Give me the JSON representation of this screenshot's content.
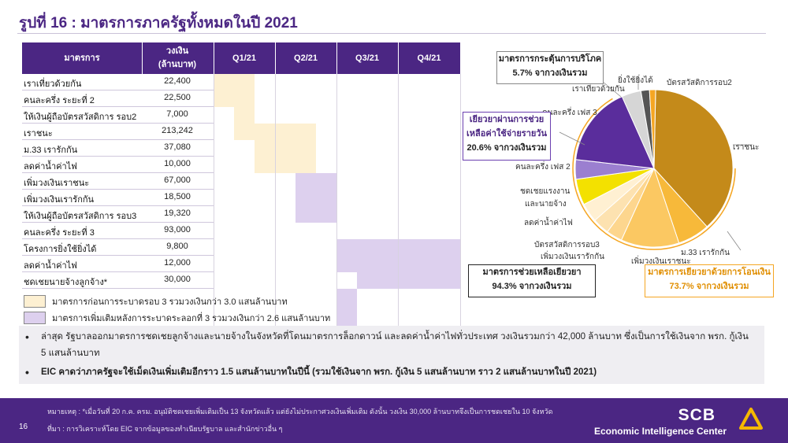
{
  "header": {
    "title": "รูปที่ 16 : มาตรการภาครัฐทั้งหมดในปี 2021"
  },
  "table": {
    "headers": {
      "measure": "มาตรการ",
      "amount": "วงเงิน\n(ล้านบาท)",
      "q1": "Q1/21",
      "q2": "Q2/21",
      "q3": "Q3/21",
      "q4": "Q4/21"
    },
    "rows": [
      {
        "measure": "เราเที่ยวด้วยกัน",
        "amount": "22,400",
        "type": "pre"
      },
      {
        "measure": "คนละครึ่ง ระยะที่ 2",
        "amount": "22,500",
        "type": "pre"
      },
      {
        "measure": "ให้เงินผู้ถือบัตรสวัสดิการ  รอบ2",
        "amount": "7,000",
        "type": "pre"
      },
      {
        "measure": "เราชนะ",
        "amount": "213,242",
        "type": "pre"
      },
      {
        "measure": "ม.33 เรารักกัน",
        "amount": "37,080",
        "type": "pre"
      },
      {
        "measure": "ลดค่าน้ำค่าไฟ",
        "amount": "10,000",
        "type": "post"
      },
      {
        "measure": "เพิ่มวงเงินเราชนะ",
        "amount": "67,000",
        "type": "post"
      },
      {
        "measure": "เพิ่มวงเงินเรารักกัน",
        "amount": "18,500",
        "type": "post"
      },
      {
        "measure": "ให้เงินผู้ถือบัตรสวัสดิการ  รอบ3",
        "amount": "19,320",
        "type": "post"
      },
      {
        "measure": "คนละครึ่ง ระยะที่ 3",
        "amount": "93,000",
        "type": "post"
      },
      {
        "measure": "โครงการยิ่งใช้ยิ่งได้",
        "amount": "9,800",
        "type": "post"
      },
      {
        "measure": "ลดค่าน้ำค่าไฟ",
        "amount": "12,000",
        "type": "post"
      },
      {
        "measure": "ชดเชยนายจ้างลูกจ้าง*",
        "amount": "30,000",
        "type": "post"
      }
    ]
  },
  "legend": {
    "pre": "มาตรการก่อนการระบาดรอบ  3 รวมวงเงินกว่า  3.0 แสนล้านบาท",
    "post": "มาตรการเพิ่มเติมหลังการระบาดระลอกที่  3 รวมวงเงินกว่า  2.6 แสนล้านบาท"
  },
  "colors": {
    "purple": "#4b2683",
    "pre": "#fdf0d2",
    "post": "#ddd0ee",
    "orange": "#f5a623"
  },
  "chart_data": {
    "type": "pie",
    "slices": [
      {
        "name": "เราชนะ",
        "value": 213242,
        "color": "#c48a1a"
      },
      {
        "name": "ม.33 เรารักกัน",
        "value": 37080,
        "color": "#f7b93a"
      },
      {
        "name": "เพิ่มวงเงินเราชนะ",
        "value": 67000,
        "color": "#fbc862"
      },
      {
        "name": "เพิ่มวงเงินเรารักกัน",
        "value": 18500,
        "color": "#fdd68e"
      },
      {
        "name": "บัตรสวัสดิการรอบ3",
        "value": 19320,
        "color": "#fde2b0"
      },
      {
        "name": "ลดค่าน้ำค่าไฟ",
        "value": 22000,
        "color": "#fff0d2"
      },
      {
        "name": "ชดเชยแรงงาน และนายจ้าง",
        "value": 30000,
        "color": "#f3e100"
      },
      {
        "name": "คนละครึ่ง เฟส 2",
        "value": 22500,
        "color": "#9b7fd0"
      },
      {
        "name": "คนละครึ่ง เฟส 3",
        "value": 93000,
        "color": "#5a2d9c"
      },
      {
        "name": "เราเที่ยวด้วยกัน",
        "value": 22400,
        "color": "#d6d6d6"
      },
      {
        "name": "ยิ่งใช้ยิ่งได้",
        "value": 9800,
        "color": "#555555"
      },
      {
        "name": "บัตรสวัสดิการรอบ2",
        "value": 7000,
        "color": "#f5a623"
      }
    ]
  },
  "pie_labels": {
    "raochana": "เราชนะ",
    "m33": "ม.33 เรารักกัน",
    "add_raochana": "เพิ่มวงเงินเราชนะ",
    "add_raorakkan": "เพิ่มวงเงินเรารักกัน",
    "card3": "บัตรสวัสดิการรอบ3",
    "water": "ลดค่าน้ำค่าไฟ",
    "labor1": "ชดเชยแรงงาน",
    "labor2": "และนายจ้าง",
    "half2": "คนละครึ่ง เฟส 2",
    "half3": "คนละครึ่ง เฟส 3",
    "travel": "เราเที่ยวด้วยกัน",
    "yingchai": "ยิ่งใช้ยิ่งได้",
    "card2": "บัตรสวัสดิการรอบ2"
  },
  "callouts": {
    "stimulus_l1": "มาตรการกระตุ้นการบริโภค",
    "stimulus_l2": "5.7% จากวงเงินรวม",
    "remedy_l1": "เยียวยาผ่านการช่วย",
    "remedy_l2": "เหลือค่าใช้จ่ายรายวัน",
    "remedy_l3": "20.6% จากวงเงินรวม",
    "relief_l1": "มาตรการช่วยเหลือเยียวยา",
    "relief_l2": "94.3% จากวงเงินรวม",
    "transfer_l1": "มาตรการเยียวยาด้วยการโอนเงิน",
    "transfer_l2": "73.7% จากวงเงินรวม"
  },
  "bullets": [
    {
      "text1": "ล่าสุด รัฐบาลออกมาตรการชดเชยลูกจ้างและนายจ้างในจังหวัดที่โดนมาตรการล็อกดาวน์  และลดค่าน้ำค่าไฟทั่วประเทศ วงเงินรวมกว่า 42,000  ล้านบาท ซึ่งเป็นการใช้เงินจาก  พรก. กู้เงิน",
      "text2": "5 แสนล้านบาท"
    },
    {
      "text1": "EIC คาดว่าภาครัฐจะใช้เม็ดเงินเพิ่มเติมอีกราว 1.5 แสนล้านบาทในปีนี้  (รวมใช้เงินจาก พรก. กู้เงิน 5 แสนล้านบาท ราว 2 แสนล้านบาทในปี 2021)"
    }
  ],
  "footer": {
    "note": "หมายเหตุ : *เมื่อวันที่ 20 ก.ค. ครม. อนุมัติชดเชยเพิ่มเติมเป็น 13 จังหวัดแล้ว แต่ยังไม่ประกาศวงเงินเพิ่มเติม ดังนั้น วงเงิน 30,000 ล้านบาทจึงเป็นการชดเชยใน 10 จังหวัด",
    "source": "ที่มา : การวิเคราะห์โดย EIC จากข้อมูลของทำเนียบรัฐบาล และสำนักข่าวอื่น ๆ",
    "page": "16",
    "brand": "SCB",
    "center": "Economic Intelligence Center"
  }
}
